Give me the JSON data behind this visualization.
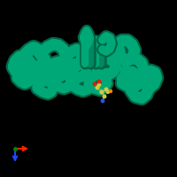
{
  "background_color": "#000000",
  "protein_color": "#00a878",
  "protein_edge_color": "#006644",
  "protein_color_dark": "#008860",
  "ligand_yellow": "#cccc44",
  "ligand_red": "#dd2200",
  "ligand_blue": "#2255ee",
  "ligand_orange": "#ff8800",
  "axis_x_color": "#ff2200",
  "axis_y_color": "#2244ff",
  "axis_origin_color": "#008800",
  "figsize": [
    2.0,
    2.0
  ],
  "dpi": 100
}
